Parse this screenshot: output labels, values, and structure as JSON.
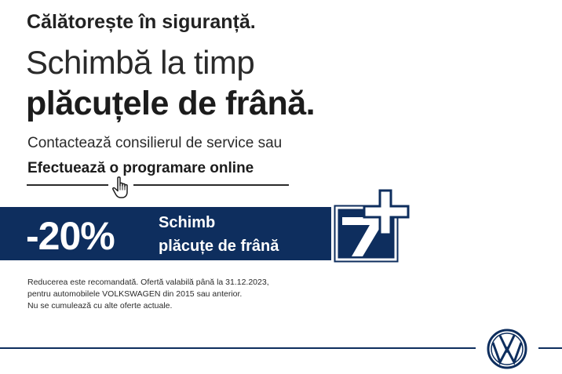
{
  "header": {
    "tagline": "Călătorește în siguranță.",
    "headline_line1": "Schimbă la timp",
    "headline_line2": "plăcuțele de frână."
  },
  "contact": {
    "text": "Contactează consilierul de service sau",
    "cta_label": "Efectuează o programare online"
  },
  "banner": {
    "discount": "-20%",
    "offer_line1": "Schimb",
    "offer_line2": "plăcuțe de frână",
    "background_color": "#0e2e5e",
    "badge_text": "7+"
  },
  "disclaimer": {
    "line1": "Reducerea este recomandată. Ofertă valabilă până la 31.12.2023,",
    "line2": "pentru automobilele VOLKSWAGEN din 2015 sau anterior.",
    "line3": "Nu se cumulează cu alte oferte actuale."
  },
  "footer": {
    "logo": "vw-logo-icon",
    "accent_color": "#0e2e5e"
  }
}
